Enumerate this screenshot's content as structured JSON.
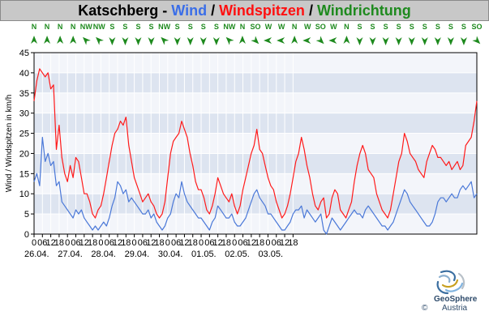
{
  "title": {
    "location": "Katschberg",
    "sep1": " - ",
    "wind": "Wind",
    "sep2": " / ",
    "gust": "Windspitzen",
    "sep3": " / ",
    "dir": "Windrichtung"
  },
  "branding": {
    "name": "GeoSphere",
    "country": "Austria",
    "copyright": "©"
  },
  "colors": {
    "wind": "#4a78d8",
    "gust": "#ff1a1a",
    "dir": "#1e8a1e",
    "band_dark": "#dde4f0",
    "band_light": "#f3f5fa"
  },
  "chart_data": {
    "type": "line",
    "title": "Katschberg - Wind / Windspitzen / Windrichtung",
    "ylabel": "Wind / Windspitzen in km/h",
    "xlabel": "",
    "ylim": [
      0,
      45
    ],
    "yticks": [
      0,
      5,
      10,
      15,
      20,
      25,
      30,
      35,
      40,
      45
    ],
    "grid": true,
    "step_hours": 2,
    "x_tick_labels": [
      "0",
      "06",
      "12",
      "18",
      "0",
      "06",
      "12",
      "18",
      "0",
      "06",
      "12",
      "18",
      "0",
      "06",
      "12",
      "18",
      "0",
      "06",
      "12",
      "18",
      "0",
      "06",
      "12",
      "18",
      "0",
      "06",
      "12",
      "18",
      "0",
      "06",
      "12",
      "18"
    ],
    "date_labels": [
      "26.04.",
      "27.04.",
      "28.04.",
      "29.04.",
      "30.04.",
      "01.05.",
      "02.05.",
      "03.05."
    ],
    "direction_labels": [
      "N",
      "N",
      "N",
      "N",
      "NW",
      "NW",
      "S",
      "S",
      "S",
      "S",
      "NW",
      "S",
      "S",
      "S",
      "S",
      "NW",
      "N",
      "SO",
      "W",
      "W",
      "N",
      "W",
      "SO",
      "W",
      "N",
      "S",
      "S",
      "S",
      "S",
      "S",
      "S",
      "S",
      "S",
      "S",
      "SO"
    ],
    "direction_rotations": [
      0,
      0,
      0,
      0,
      -45,
      -45,
      180,
      180,
      180,
      180,
      -45,
      180,
      180,
      180,
      180,
      -45,
      0,
      135,
      -90,
      -90,
      0,
      -90,
      135,
      -90,
      0,
      180,
      180,
      180,
      180,
      180,
      180,
      180,
      180,
      180,
      135
    ],
    "series": [
      {
        "name": "Wind",
        "color": "#4a78d8",
        "values": [
          13,
          15,
          12,
          24,
          18,
          20,
          17,
          18,
          12,
          13,
          8,
          7,
          6,
          5,
          4,
          6,
          5,
          6,
          4,
          3,
          2,
          1,
          2,
          1,
          2,
          3,
          2,
          4,
          7,
          9,
          13,
          12,
          10,
          11,
          8,
          9,
          8,
          7,
          6,
          5,
          5,
          6,
          4,
          5,
          3,
          2,
          1,
          2,
          4,
          5,
          8,
          10,
          9,
          13,
          10,
          8,
          7,
          6,
          5,
          4,
          4,
          3,
          2,
          1,
          3,
          4,
          7,
          6,
          5,
          4,
          4,
          5,
          3,
          2,
          2,
          3,
          4,
          6,
          8,
          10,
          11,
          9,
          8,
          7,
          5,
          5,
          4,
          3,
          2,
          1,
          1,
          2,
          3,
          5,
          6,
          6,
          7,
          4,
          6,
          5,
          4,
          3,
          4,
          5,
          1,
          0,
          2,
          4,
          3,
          2,
          1,
          2,
          3,
          4,
          5,
          6,
          5,
          5,
          4,
          6,
          7,
          6,
          5,
          4,
          3,
          2,
          2,
          1,
          2,
          3,
          5,
          7,
          9,
          11,
          10,
          8,
          7,
          6,
          5,
          4,
          3,
          2,
          2,
          3,
          5,
          8,
          9,
          9,
          8,
          9,
          10,
          9,
          9,
          11,
          12,
          11,
          12,
          13,
          9,
          10
        ]
      },
      {
        "name": "Windspitzen",
        "color": "#ff1a1a",
        "values": [
          33,
          38,
          41,
          40,
          39,
          40,
          36,
          37,
          21,
          27,
          19,
          15,
          13,
          17,
          14,
          19,
          18,
          14,
          10,
          10,
          8,
          5,
          4,
          6,
          7,
          10,
          14,
          18,
          22,
          25,
          26,
          28,
          27,
          29,
          22,
          18,
          14,
          12,
          10,
          8,
          9,
          10,
          8,
          7,
          5,
          4,
          5,
          8,
          14,
          20,
          23,
          24,
          25,
          28,
          26,
          24,
          20,
          17,
          13,
          11,
          11,
          9,
          6,
          5,
          7,
          10,
          14,
          12,
          10,
          9,
          8,
          10,
          7,
          5,
          7,
          11,
          14,
          17,
          20,
          22,
          26,
          21,
          20,
          17,
          14,
          12,
          11,
          8,
          6,
          4,
          5,
          7,
          10,
          14,
          18,
          20,
          24,
          21,
          17,
          14,
          10,
          7,
          6,
          8,
          9,
          4,
          5,
          9,
          11,
          10,
          6,
          5,
          4,
          6,
          8,
          13,
          17,
          20,
          22,
          20,
          16,
          15,
          14,
          10,
          8,
          6,
          5,
          4,
          6,
          10,
          14,
          18,
          20,
          25,
          23,
          20,
          19,
          18,
          16,
          15,
          14,
          18,
          20,
          22,
          21,
          19,
          19,
          18,
          17,
          18,
          16,
          17,
          18,
          16,
          17,
          22,
          23,
          24,
          28,
          33
        ]
      }
    ]
  }
}
